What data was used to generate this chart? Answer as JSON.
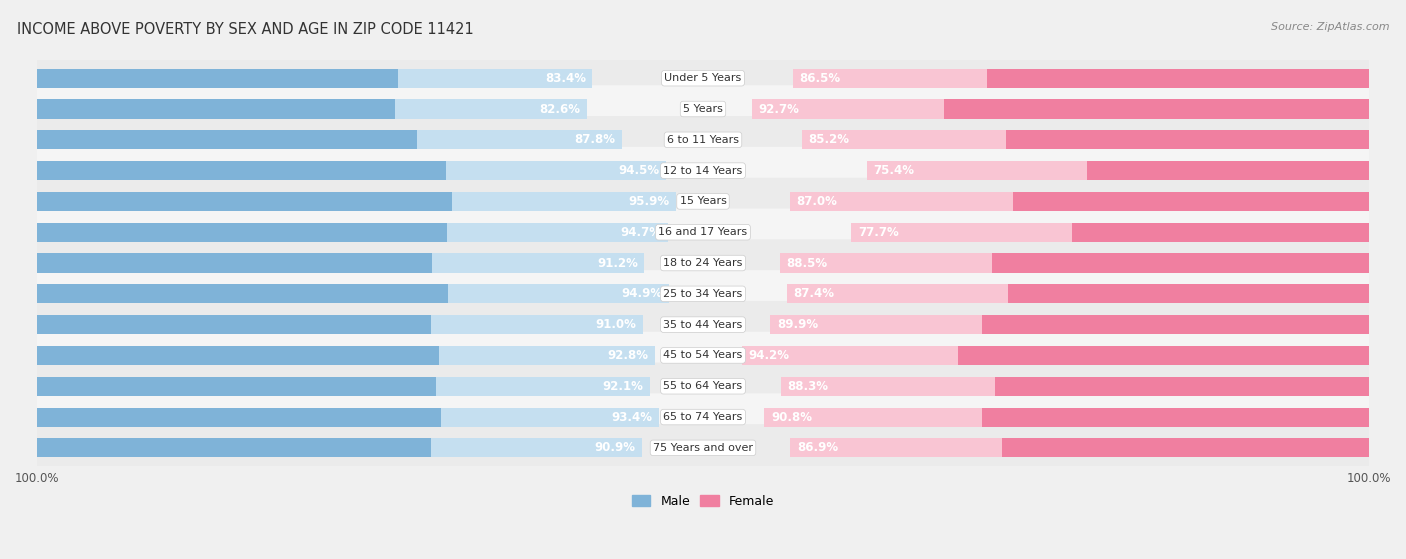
{
  "title": "INCOME ABOVE POVERTY BY SEX AND AGE IN ZIP CODE 11421",
  "source": "Source: ZipAtlas.com",
  "categories": [
    "Under 5 Years",
    "5 Years",
    "6 to 11 Years",
    "12 to 14 Years",
    "15 Years",
    "16 and 17 Years",
    "18 to 24 Years",
    "25 to 34 Years",
    "35 to 44 Years",
    "45 to 54 Years",
    "55 to 64 Years",
    "65 to 74 Years",
    "75 Years and over"
  ],
  "male_values": [
    83.4,
    82.6,
    87.8,
    94.5,
    95.9,
    94.7,
    91.2,
    94.9,
    91.0,
    92.8,
    92.1,
    93.4,
    90.9
  ],
  "female_values": [
    86.5,
    92.7,
    85.2,
    75.4,
    87.0,
    77.7,
    88.5,
    87.4,
    89.9,
    94.2,
    88.3,
    90.8,
    86.9
  ],
  "male_color": "#7fb3d8",
  "male_color_light": "#c5dff0",
  "female_color": "#f07fa0",
  "female_color_light": "#f9c5d3",
  "male_label": "Male",
  "female_label": "Female",
  "bg_color": "#f0f0f0",
  "row_bg_color": "#e8e8e8",
  "row_bg_color2": "#f8f8f8",
  "title_fontsize": 10.5,
  "label_fontsize": 8.0,
  "value_fontsize": 8.5,
  "legend_fontsize": 9,
  "source_fontsize": 8
}
